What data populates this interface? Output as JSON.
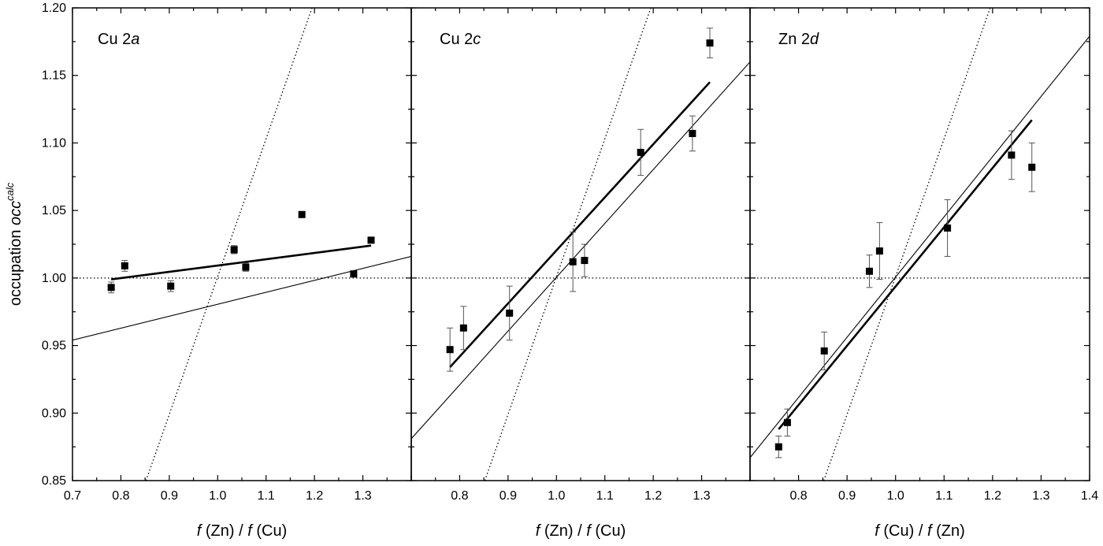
{
  "chart_data": [
    {
      "type": "scatter",
      "panel_label": {
        "prefix": "Cu 2",
        "italic": "a"
      },
      "xlabel": {
        "f1": "f",
        "mid": " (Zn) / ",
        "f2": "f",
        "end": " (Cu)"
      },
      "ylabel": {
        "prefix": "occupation ",
        "italic": "occ",
        "sup": "calc"
      },
      "xlim": [
        0.7,
        1.4
      ],
      "ylim": [
        0.85,
        1.2
      ],
      "x_tick_labels": [
        "0.7",
        "0.8",
        "0.9",
        "1.0",
        "1.1",
        "1.2",
        "1.3"
      ],
      "y_tick_labels": [
        "0.85",
        "0.90",
        "0.95",
        "1.00",
        "1.05",
        "1.10",
        "1.15",
        "1.20"
      ],
      "points": [
        {
          "x": 0.78,
          "y": 0.993,
          "err": 0.004
        },
        {
          "x": 0.808,
          "y": 1.009,
          "err": 0.004
        },
        {
          "x": 0.903,
          "y": 0.994,
          "err": 0.004
        },
        {
          "x": 1.034,
          "y": 1.021,
          "err": 0.003
        },
        {
          "x": 1.058,
          "y": 1.008,
          "err": 0.003
        },
        {
          "x": 1.174,
          "y": 1.047,
          "err": 0.002
        },
        {
          "x": 1.281,
          "y": 1.003,
          "err": 0.002
        },
        {
          "x": 1.317,
          "y": 1.028,
          "err": 0.002
        }
      ],
      "lines": [
        {
          "style": "thick",
          "x": [
            0.78,
            1.317
          ],
          "y": [
            0.999,
            1.024
          ]
        },
        {
          "style": "thin",
          "x": [
            0.7,
            1.4
          ],
          "y": [
            0.954,
            1.016
          ]
        },
        {
          "style": "dotted",
          "x": [
            0.852,
            1.195
          ],
          "y": [
            0.85,
            1.2
          ]
        },
        {
          "style": "dotted-horizontal",
          "x": [
            0.7,
            1.4
          ],
          "y": [
            1.0,
            1.0
          ]
        }
      ]
    },
    {
      "type": "scatter",
      "panel_label": {
        "prefix": "Cu 2",
        "italic": "c"
      },
      "xlabel": {
        "f1": "f",
        "mid": " (Zn) / ",
        "f2": "f",
        "end": " (Cu)"
      },
      "xlim": [
        0.7,
        1.4
      ],
      "ylim": [
        0.85,
        1.2
      ],
      "x_tick_labels": [
        "0.8",
        "0.9",
        "1.0",
        "1.1",
        "1.2",
        "1.3"
      ],
      "points": [
        {
          "x": 0.78,
          "y": 0.947,
          "err": 0.016
        },
        {
          "x": 0.808,
          "y": 0.963,
          "err": 0.016
        },
        {
          "x": 0.903,
          "y": 0.974,
          "err": 0.02
        },
        {
          "x": 1.034,
          "y": 1.012,
          "err": 0.022
        },
        {
          "x": 1.058,
          "y": 1.013,
          "err": 0.012
        },
        {
          "x": 1.174,
          "y": 1.093,
          "err": 0.017
        },
        {
          "x": 1.281,
          "y": 1.107,
          "err": 0.013
        },
        {
          "x": 1.317,
          "y": 1.174,
          "err": 0.011
        }
      ],
      "lines": [
        {
          "style": "thick",
          "x": [
            0.78,
            1.317
          ],
          "y": [
            0.934,
            1.145
          ]
        },
        {
          "style": "thin",
          "x": [
            0.7,
            1.4
          ],
          "y": [
            0.881,
            1.16
          ]
        },
        {
          "style": "dotted",
          "x": [
            0.852,
            1.195
          ],
          "y": [
            0.85,
            1.2
          ]
        },
        {
          "style": "dotted-horizontal",
          "x": [
            0.7,
            1.4
          ],
          "y": [
            1.0,
            1.0
          ]
        }
      ]
    },
    {
      "type": "scatter",
      "panel_label": {
        "prefix": "Zn 2",
        "italic": "d"
      },
      "xlabel": {
        "f1": "f",
        "mid": " (Cu) / ",
        "f2": "f",
        "end": " (Zn)"
      },
      "xlim": [
        0.7,
        1.4
      ],
      "ylim": [
        0.85,
        1.2
      ],
      "x_tick_labels": [
        "0.8",
        "0.9",
        "1.0",
        "1.1",
        "1.2",
        "1.3",
        "1.4"
      ],
      "points": [
        {
          "x": 0.759,
          "y": 0.875,
          "err": 0.008
        },
        {
          "x": 0.777,
          "y": 0.893,
          "err": 0.01
        },
        {
          "x": 0.853,
          "y": 0.946,
          "err": 0.014
        },
        {
          "x": 0.946,
          "y": 1.005,
          "err": 0.012
        },
        {
          "x": 0.967,
          "y": 1.02,
          "err": 0.021
        },
        {
          "x": 1.107,
          "y": 1.037,
          "err": 0.021
        },
        {
          "x": 1.239,
          "y": 1.091,
          "err": 0.018
        },
        {
          "x": 1.281,
          "y": 1.082,
          "err": 0.018
        }
      ],
      "lines": [
        {
          "style": "thick",
          "x": [
            0.759,
            1.281
          ],
          "y": [
            0.888,
            1.117
          ]
        },
        {
          "style": "thin",
          "x": [
            0.7,
            1.4
          ],
          "y": [
            0.867,
            1.179
          ]
        },
        {
          "style": "dotted",
          "x": [
            0.852,
            1.195
          ],
          "y": [
            0.85,
            1.2
          ]
        },
        {
          "style": "dotted-horizontal",
          "x": [
            0.7,
            1.4
          ],
          "y": [
            1.0,
            1.0
          ]
        }
      ]
    }
  ]
}
